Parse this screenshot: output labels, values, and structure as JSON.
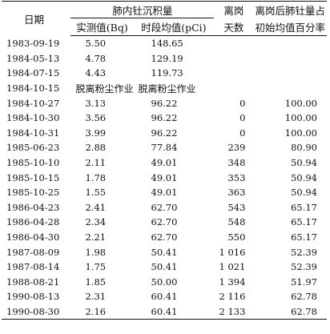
{
  "table": {
    "headers": {
      "date": "日期",
      "group": "肺内钍沉积量",
      "measured": "实测值(Bq)",
      "period_avg": "时段均值(pCi)",
      "days_line1": "离岗",
      "days_line2": "天数",
      "pct_line1": "离岗后肺钍量占",
      "pct_line2": "初始均值百分率"
    },
    "note_row": {
      "date": "1984-10-15",
      "measured_note": "脱离粉尘作业",
      "avg_note": "脱离粉尘作业"
    },
    "rows_before": [
      {
        "date": "1983-09-19",
        "measured": "5.50",
        "avg": "148.65",
        "days": "",
        "pct": ""
      },
      {
        "date": "1984-05-13",
        "measured": "4.78",
        "avg": "129.19",
        "days": "",
        "pct": ""
      },
      {
        "date": "1984-07-15",
        "measured": "4.43",
        "avg": "119.73",
        "days": "",
        "pct": ""
      }
    ],
    "rows_after": [
      {
        "date": "1984-10-27",
        "measured": "3.13",
        "avg": "96.22",
        "days": "0",
        "pct": "100.00"
      },
      {
        "date": "1984-10-30",
        "measured": "3.56",
        "avg": "96.22",
        "days": "0",
        "pct": "100.00"
      },
      {
        "date": "1984-10-31",
        "measured": "3.99",
        "avg": "96.22",
        "days": "0",
        "pct": "100.00"
      },
      {
        "date": "1985-06-23",
        "measured": "2.88",
        "avg": "77.84",
        "days": "239",
        "pct": "80.90"
      },
      {
        "date": "1985-10-10",
        "measured": "2.11",
        "avg": "49.01",
        "days": "348",
        "pct": "50.94"
      },
      {
        "date": "1985-10-15",
        "measured": "1.78",
        "avg": "49.01",
        "days": "353",
        "pct": "50.94"
      },
      {
        "date": "1985-10-25",
        "measured": "1.55",
        "avg": "49.01",
        "days": "363",
        "pct": "50.94"
      },
      {
        "date": "1986-04-23",
        "measured": "2.41",
        "avg": "62.70",
        "days": "543",
        "pct": "65.17"
      },
      {
        "date": "1986-04-28",
        "measured": "2.34",
        "avg": "62.70",
        "days": "548",
        "pct": "65.17"
      },
      {
        "date": "1986-04-30",
        "measured": "2.21",
        "avg": "62.70",
        "days": "550",
        "pct": "65.17"
      },
      {
        "date": "1987-08-09",
        "measured": "1.98",
        "avg": "50.41",
        "days": "1 016",
        "pct": "52.39"
      },
      {
        "date": "1987-08-14",
        "measured": "1.75",
        "avg": "50.41",
        "days": "1 021",
        "pct": "52.39"
      },
      {
        "date": "1988-08-21",
        "measured": "1.85",
        "avg": "50.00",
        "days": "1 394",
        "pct": "51.97"
      },
      {
        "date": "1990-08-13",
        "measured": "2.31",
        "avg": "60.41",
        "days": "2 116",
        "pct": "62.78"
      },
      {
        "date": "1990-08-30",
        "measured": "2.16",
        "avg": "60.41",
        "days": "2 133",
        "pct": "62.78"
      }
    ]
  }
}
